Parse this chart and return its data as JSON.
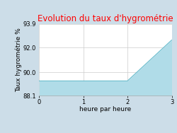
{
  "title": "Evolution du taux d'hygrométrie",
  "title_color": "#ff0000",
  "xlabel": "heure par heure",
  "ylabel": "Taux hygrométrie %",
  "background_color": "#ccdde8",
  "plot_background": "#ffffff",
  "x": [
    0,
    2,
    3
  ],
  "y": [
    89.3,
    89.3,
    92.6
  ],
  "fill_color": "#b0dce8",
  "line_color": "#66bbcc",
  "ylim": [
    88.1,
    93.9
  ],
  "xlim": [
    0,
    3
  ],
  "yticks": [
    88.1,
    90.0,
    92.0,
    93.9
  ],
  "xticks": [
    0,
    1,
    2,
    3
  ],
  "grid_color": "#cccccc",
  "title_fontsize": 8.5,
  "label_fontsize": 6.5,
  "tick_fontsize": 6
}
